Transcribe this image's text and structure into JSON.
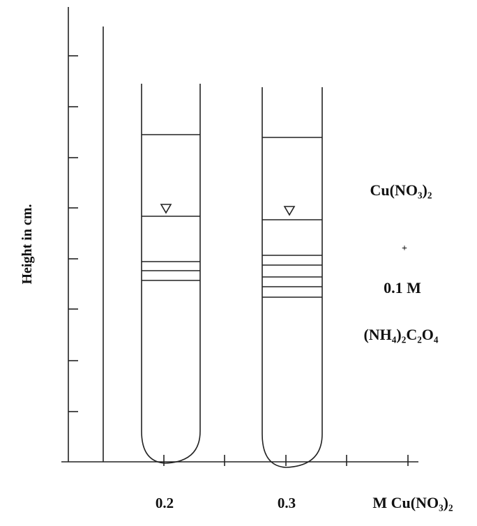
{
  "axes": {
    "y_label": "Height in cm.",
    "x_label": "M Cu(NO₃)₂",
    "x_labels": [
      "0.2",
      "0.3"
    ]
  },
  "annotation": {
    "lines": [
      "Cu(NO₃)₂",
      "+",
      "0.1 M",
      "(NH₄)₂C₂O₄"
    ]
  }
}
